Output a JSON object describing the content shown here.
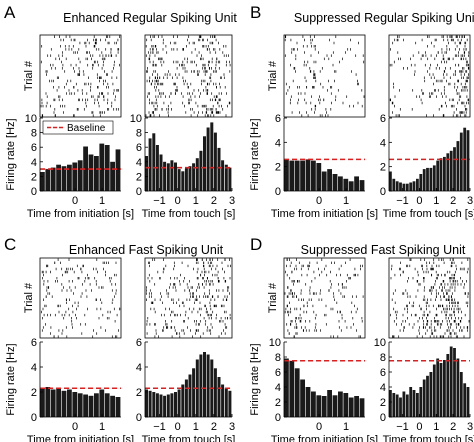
{
  "figure": {
    "ylabel_rate": "Firing rate [Hz]",
    "ylabel_raster": "Trial #",
    "xlabel_initiation": "Time from initiation [s]",
    "xlabel_touch": "Time from touch [s]",
    "legend_label": "Baseline"
  },
  "colors": {
    "bar": "#1a1a1a",
    "baseline": "#e01e1e",
    "spike": "#000000"
  },
  "chart_data": [
    {
      "id": "A",
      "panel_label": "A",
      "title": "Enhanced Regular Spiking Unit",
      "type": "bar",
      "ylim": [
        0,
        10
      ],
      "yticks": [
        0,
        2,
        4,
        6,
        8,
        10
      ],
      "left": {
        "xlim": [
          -1.3,
          1.7
        ],
        "xticks": [
          0,
          1
        ],
        "x": [
          -1.2,
          -1.0,
          -0.8,
          -0.6,
          -0.4,
          -0.2,
          0.0,
          0.2,
          0.4,
          0.6,
          0.8,
          1.0,
          1.2,
          1.4,
          1.6
        ],
        "values": [
          2.6,
          3.0,
          3.2,
          3.6,
          3.4,
          3.6,
          3.9,
          4.2,
          6.1,
          5.0,
          4.8,
          6.5,
          6.3,
          4.0,
          5.7
        ],
        "baseline": 3.0
      },
      "right": {
        "xlim": [
          -1.8,
          3.0
        ],
        "xticks": [
          -1,
          0,
          1,
          2,
          3
        ],
        "x": [
          -1.7,
          -1.5,
          -1.3,
          -1.1,
          -0.9,
          -0.7,
          -0.5,
          -0.3,
          -0.1,
          0.1,
          0.3,
          0.5,
          0.7,
          0.9,
          1.1,
          1.3,
          1.5,
          1.7,
          1.9,
          2.1,
          2.3,
          2.5,
          2.7,
          2.9
        ],
        "values": [
          4.8,
          7.2,
          7.9,
          6.3,
          5.0,
          4.0,
          3.8,
          4.2,
          3.9,
          3.0,
          2.7,
          3.1,
          3.4,
          3.8,
          4.5,
          5.5,
          7.5,
          8.7,
          9.4,
          8.0,
          5.9,
          4.2,
          3.6,
          3.2
        ],
        "baseline": 3.2
      },
      "legend": true
    },
    {
      "id": "B",
      "panel_label": "B",
      "title": "Suppressed Regular Spiking Unit",
      "type": "bar",
      "ylim": [
        0,
        6
      ],
      "yticks": [
        0,
        2,
        4,
        6
      ],
      "left": {
        "xlim": [
          -1.3,
          1.7
        ],
        "xticks": [
          0,
          1
        ],
        "x": [
          -1.2,
          -1.0,
          -0.8,
          -0.6,
          -0.4,
          -0.2,
          0.0,
          0.2,
          0.4,
          0.6,
          0.8,
          1.0,
          1.2,
          1.4,
          1.6
        ],
        "values": [
          2.6,
          2.5,
          2.5,
          2.5,
          2.6,
          2.5,
          2.3,
          1.6,
          1.8,
          1.4,
          1.2,
          1.0,
          0.8,
          1.2,
          0.9
        ],
        "baseline": 2.6
      },
      "right": {
        "xlim": [
          -1.8,
          3.0
        ],
        "xticks": [
          -1,
          0,
          1,
          2,
          3
        ],
        "x": [
          -1.7,
          -1.5,
          -1.3,
          -1.1,
          -0.9,
          -0.7,
          -0.5,
          -0.3,
          -0.1,
          0.1,
          0.3,
          0.5,
          0.7,
          0.9,
          1.1,
          1.3,
          1.5,
          1.7,
          1.9,
          2.1,
          2.3,
          2.5,
          2.7,
          2.9
        ],
        "values": [
          1.6,
          1.0,
          0.8,
          0.7,
          0.6,
          0.6,
          0.7,
          0.8,
          1.0,
          1.4,
          1.8,
          1.9,
          1.9,
          2.1,
          2.5,
          2.7,
          2.8,
          3.1,
          3.3,
          3.6,
          4.1,
          4.8,
          5.2,
          5.0
        ],
        "baseline": 2.6
      },
      "legend": false
    },
    {
      "id": "C",
      "panel_label": "C",
      "title": "Enhanced Fast Spiking Unit",
      "type": "bar",
      "ylim": [
        0,
        6
      ],
      "yticks": [
        0,
        2,
        4,
        6
      ],
      "left": {
        "xlim": [
          -1.3,
          1.7
        ],
        "xticks": [
          0,
          1
        ],
        "x": [
          -1.2,
          -1.0,
          -0.8,
          -0.6,
          -0.4,
          -0.2,
          0.0,
          0.2,
          0.4,
          0.6,
          0.8,
          1.0,
          1.2,
          1.4,
          1.6
        ],
        "values": [
          2.3,
          2.4,
          2.2,
          2.3,
          2.1,
          2.2,
          2.0,
          1.9,
          1.8,
          1.7,
          1.9,
          2.2,
          1.9,
          1.7,
          1.6
        ],
        "baseline": 2.3
      },
      "right": {
        "xlim": [
          -1.8,
          3.0
        ],
        "xticks": [
          -1,
          0,
          1,
          2,
          3
        ],
        "x": [
          -1.7,
          -1.5,
          -1.3,
          -1.1,
          -0.9,
          -0.7,
          -0.5,
          -0.3,
          -0.1,
          0.1,
          0.3,
          0.5,
          0.7,
          0.9,
          1.1,
          1.3,
          1.5,
          1.7,
          1.9,
          2.1,
          2.3,
          2.5,
          2.7,
          2.9
        ],
        "values": [
          2.2,
          2.1,
          2.0,
          1.9,
          1.8,
          1.7,
          1.8,
          1.9,
          2.0,
          2.2,
          2.6,
          3.0,
          3.4,
          3.9,
          4.6,
          5.0,
          5.2,
          5.0,
          4.6,
          3.9,
          3.2,
          2.6,
          2.3,
          2.1
        ],
        "baseline": 2.3
      },
      "legend": false
    },
    {
      "id": "D",
      "panel_label": "D",
      "title": "Suppressed Fast Spiking Unit",
      "type": "bar",
      "ylim": [
        0,
        10
      ],
      "yticks": [
        0,
        2,
        4,
        6,
        8,
        10
      ],
      "left": {
        "xlim": [
          -1.3,
          1.7
        ],
        "xticks": [
          0,
          1
        ],
        "x": [
          -1.2,
          -1.0,
          -0.8,
          -0.6,
          -0.4,
          -0.2,
          0.0,
          0.2,
          0.4,
          0.6,
          0.8,
          1.0,
          1.2,
          1.4,
          1.6
        ],
        "values": [
          7.8,
          7.5,
          6.5,
          5.0,
          4.0,
          3.4,
          2.9,
          2.8,
          3.6,
          2.9,
          3.4,
          3.2,
          2.6,
          2.8,
          2.5
        ],
        "baseline": 7.5
      },
      "right": {
        "xlim": [
          -1.8,
          3.0
        ],
        "xticks": [
          -1,
          0,
          1,
          2,
          3
        ],
        "x": [
          -1.7,
          -1.5,
          -1.3,
          -1.1,
          -0.9,
          -0.7,
          -0.5,
          -0.3,
          -0.1,
          0.1,
          0.3,
          0.5,
          0.7,
          0.9,
          1.1,
          1.3,
          1.5,
          1.7,
          1.9,
          2.1,
          2.3,
          2.5,
          2.7,
          2.9
        ],
        "values": [
          3.6,
          3.2,
          3.0,
          2.6,
          3.4,
          3.0,
          4.0,
          3.6,
          3.2,
          4.0,
          5.0,
          5.5,
          6.0,
          7.0,
          7.8,
          7.2,
          7.6,
          8.4,
          9.4,
          9.2,
          7.8,
          6.0,
          4.5,
          4.0
        ],
        "baseline": 7.5
      },
      "legend": false
    }
  ]
}
